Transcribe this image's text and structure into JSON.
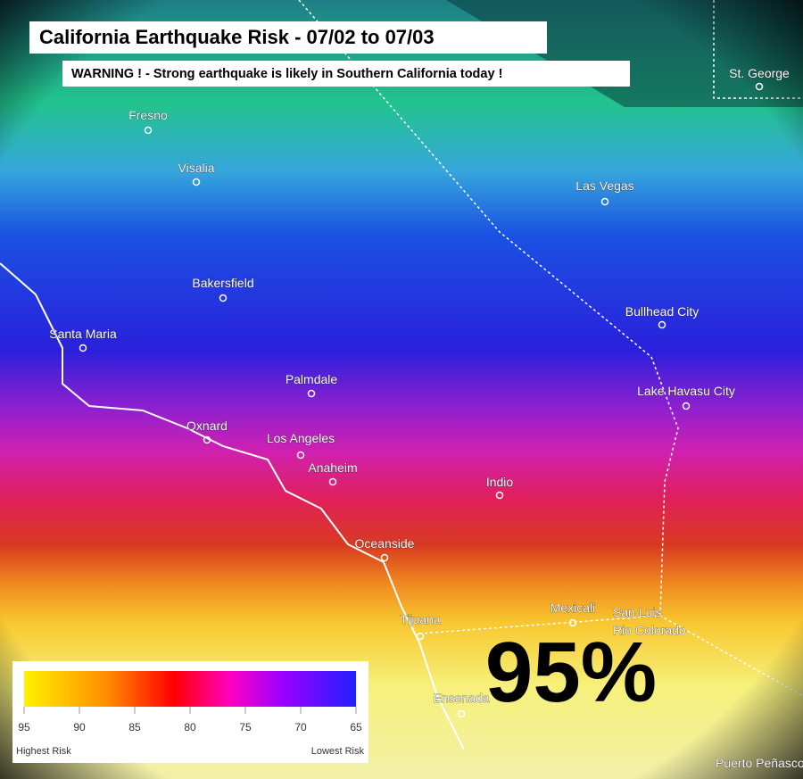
{
  "title": "California Earthquake Risk - 07/02 to 07/03",
  "warning": "WARNING ! - Strong earthquake is likely in Southern California today !",
  "cities": [
    {
      "lines": [
        "Fresno"
      ]
    },
    {
      "lines": [
        "Visalia"
      ]
    },
    {
      "lines": [
        "Bakersfield"
      ]
    },
    {
      "lines": [
        "Santa Maria"
      ]
    },
    {
      "lines": [
        "Palmdale"
      ]
    },
    {
      "lines": [
        "Oxnard"
      ]
    },
    {
      "lines": [
        "Los Angeles"
      ]
    },
    {
      "lines": [
        "Anaheim"
      ]
    },
    {
      "lines": [
        "Indio"
      ]
    },
    {
      "lines": [
        "Oceanside"
      ]
    },
    {
      "lines": [
        "Tijuana"
      ]
    },
    {
      "lines": [
        "Ensenada"
      ]
    },
    {
      "lines": [
        "Mexicali"
      ]
    },
    {
      "lines": [
        "San Luis",
        "Rio Colorado"
      ]
    },
    {
      "lines": [
        "Las Vegas"
      ]
    },
    {
      "lines": [
        "Bullhead City"
      ]
    },
    {
      "lines": [
        "Lake Havasu City"
      ]
    },
    {
      "lines": [
        "St. George"
      ]
    },
    {
      "lines": [
        "Puerto Peñasco"
      ]
    }
  ],
  "legend": {
    "range": [
      95,
      65
    ],
    "ticks": [
      95,
      90,
      85,
      80,
      75,
      70,
      65
    ],
    "left_label": "Highest Risk",
    "right_label": "Lowest Risk"
  },
  "risk": {
    "value": 95,
    "label": "95%"
  }
}
